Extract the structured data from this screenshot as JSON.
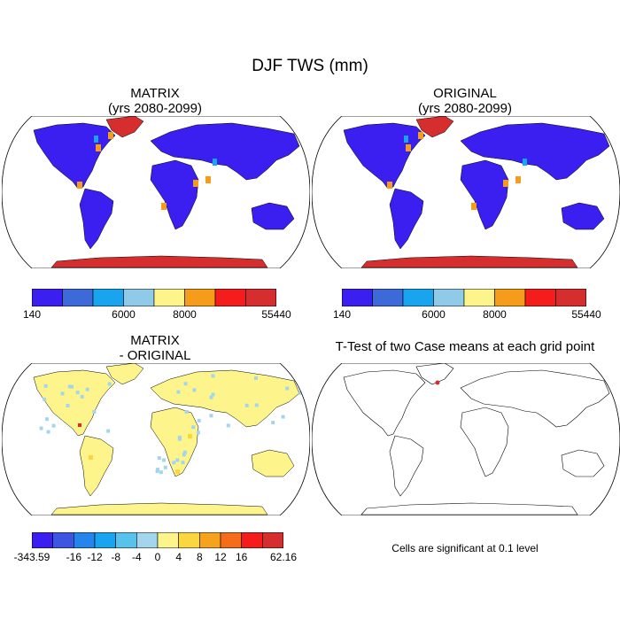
{
  "figure": {
    "title": "DJF TWS (mm)"
  },
  "panels": {
    "matrix": {
      "title_line1": "MATRIX",
      "title_line2": "(yrs 2080-2099)"
    },
    "original": {
      "title_line1": "ORIGINAL",
      "title_line2": "(yrs 2080-2099)"
    },
    "difference": {
      "title_line1": "MATRIX",
      "title_line2": "- ORIGINAL"
    },
    "ttest": {
      "title": "T-Test of two Case means at each grid point",
      "note": "Cells are significant at 0.1 level"
    }
  },
  "colorbars": {
    "tws": {
      "colors": [
        "#3a1ff0",
        "#3d6ad8",
        "#18a4ee",
        "#8fcbe8",
        "#fdf58c",
        "#f79b1a",
        "#f51c1c",
        "#d62e2e"
      ],
      "labels": [
        "140",
        "6000",
        "8000",
        "55440"
      ]
    },
    "diff": {
      "colors": [
        "#3a1ff0",
        "#3d55e0",
        "#2585ec",
        "#1aa4f0",
        "#57c2ec",
        "#a3d6ec",
        "#fdf58c",
        "#fbd640",
        "#f7a21c",
        "#f56d1a",
        "#f51c1c",
        "#d62e2e"
      ],
      "labels": [
        "-343.59",
        "-16",
        "-12",
        "-8",
        "-4",
        "0",
        "4",
        "8",
        "12",
        "16",
        "62.16"
      ]
    }
  },
  "map_colors": {
    "ocean": "#ffffff",
    "tws_land": "#3a1ff0",
    "tws_ice": "#d62e2e",
    "tws_accent_orange": "#f79b1a",
    "tws_accent_cyan": "#18a4ee",
    "diff_land": "#fdf58c",
    "diff_accent_blue": "#a3d6ec",
    "diff_accent_orange": "#fbd640",
    "ttest_point": "#d62e2e"
  }
}
